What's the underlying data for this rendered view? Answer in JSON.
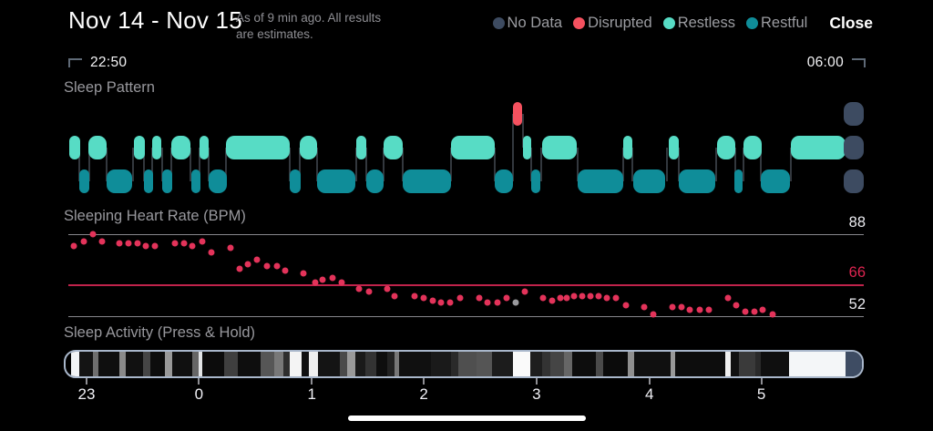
{
  "header": {
    "title": "Nov 14 - Nov 15",
    "subtitle": "As of 9 min ago. All results are estimates.",
    "close_label": "Close",
    "legend": [
      {
        "label": "No Data",
        "color": "#3d4b61"
      },
      {
        "label": "Disrupted",
        "color": "#f5515f"
      },
      {
        "label": "Restless",
        "color": "#57dcc5"
      },
      {
        "label": "Restful",
        "color": "#0f8d99"
      }
    ]
  },
  "time_range": {
    "start": "22:50",
    "end": "06:00"
  },
  "sections": {
    "pattern_title": "Sleep Pattern",
    "heart_rate_title": "Sleeping Heart Rate (BPM)",
    "activity_title": "Sleep Activity (Press & Hold)"
  },
  "chart_data": [
    {
      "type": "sleep-pattern-hypnogram",
      "title": "Sleep Pattern",
      "x_range": [
        "22:50",
        "06:00"
      ],
      "lanes": [
        "disrupted",
        "restless",
        "restful"
      ],
      "colors": {
        "disrupted": "#f5515f",
        "restless": "#57dcc5",
        "restful": "#0f8d99",
        "no_data": "#3d4b61",
        "connector": "#33383e"
      },
      "segments": [
        {
          "t": "restless",
          "s": 0.7,
          "e": 2.0
        },
        {
          "t": "restful",
          "s": 1.9,
          "e": 3.2
        },
        {
          "t": "restless",
          "s": 3.1,
          "e": 5.3
        },
        {
          "t": "restful",
          "s": 5.3,
          "e": 8.5
        },
        {
          "t": "restless",
          "s": 8.8,
          "e": 10.1
        },
        {
          "t": "restful",
          "s": 10.0,
          "e": 11.1
        },
        {
          "t": "restless",
          "s": 11.0,
          "e": 12.2
        },
        {
          "t": "restful",
          "s": 12.3,
          "e": 13.5
        },
        {
          "t": "restless",
          "s": 13.4,
          "e": 15.8
        },
        {
          "t": "restful",
          "s": 15.9,
          "e": 17.0
        },
        {
          "t": "restless",
          "s": 16.9,
          "e": 18.1
        },
        {
          "t": "restful",
          "s": 18.1,
          "e": 20.3
        },
        {
          "t": "restless",
          "s": 20.2,
          "e": 28.2
        },
        {
          "t": "restful",
          "s": 28.2,
          "e": 29.5
        },
        {
          "t": "restless",
          "s": 29.4,
          "e": 31.6
        },
        {
          "t": "restful",
          "s": 31.6,
          "e": 36.4
        },
        {
          "t": "restless",
          "s": 36.5,
          "e": 37.7
        },
        {
          "t": "restful",
          "s": 37.7,
          "e": 39.9
        },
        {
          "t": "restless",
          "s": 39.9,
          "e": 42.3
        },
        {
          "t": "restful",
          "s": 42.3,
          "e": 48.3
        },
        {
          "t": "restless",
          "s": 48.3,
          "e": 53.8
        },
        {
          "t": "restful",
          "s": 53.8,
          "e": 56.0
        },
        {
          "t": "disrupted",
          "s": 56.0,
          "e": 57.2
        },
        {
          "t": "restless",
          "s": 57.3,
          "e": 58.3
        },
        {
          "t": "restful",
          "s": 58.3,
          "e": 59.4
        },
        {
          "t": "restless",
          "s": 59.7,
          "e": 64.0
        },
        {
          "t": "restful",
          "s": 64.1,
          "e": 69.8
        },
        {
          "t": "restless",
          "s": 69.8,
          "e": 70.9
        },
        {
          "t": "restful",
          "s": 71.0,
          "e": 75.0
        },
        {
          "t": "restless",
          "s": 75.5,
          "e": 76.7
        },
        {
          "t": "restful",
          "s": 76.7,
          "e": 81.3
        },
        {
          "t": "restless",
          "s": 81.5,
          "e": 83.8
        },
        {
          "t": "restful",
          "s": 83.6,
          "e": 84.7
        },
        {
          "t": "restless",
          "s": 84.8,
          "e": 87.0
        },
        {
          "t": "restful",
          "s": 86.9,
          "e": 90.6
        },
        {
          "t": "restless",
          "s": 90.7,
          "e": 97.5
        }
      ],
      "no_data": {
        "s": 97.3,
        "e": 99.8
      }
    },
    {
      "type": "scatter",
      "title": "Sleeping Heart Rate (BPM)",
      "ylabels": [
        88,
        66,
        52
      ],
      "highlight_value": 66,
      "ylim": [
        50,
        91
      ],
      "dot_color": "#e3335a",
      "gray_dot_color": "#9a9a9e",
      "highlight_line_color": "#c0234b",
      "points": [
        [
          1.3,
          83
        ],
        [
          2.5,
          85
        ],
        [
          3.7,
          88
        ],
        [
          4.8,
          85
        ],
        [
          7,
          84
        ],
        [
          8.1,
          84
        ],
        [
          9.2,
          84
        ],
        [
          10.3,
          83
        ],
        [
          11.4,
          83
        ],
        [
          13.9,
          84
        ],
        [
          15,
          84
        ],
        [
          16.1,
          83
        ],
        [
          17.3,
          85
        ],
        [
          18.5,
          80
        ],
        [
          20.8,
          82
        ],
        [
          22,
          73
        ],
        [
          23,
          75
        ],
        [
          24.1,
          77
        ],
        [
          25.4,
          74
        ],
        [
          26.6,
          74
        ],
        [
          27.7,
          72
        ],
        [
          29.9,
          71
        ],
        [
          31.4,
          67
        ],
        [
          32.4,
          68
        ],
        [
          33.6,
          69
        ],
        [
          34.7,
          67
        ],
        [
          36.9,
          64
        ],
        [
          38.1,
          63
        ],
        [
          40.4,
          64
        ],
        [
          41.4,
          61
        ],
        [
          43.9,
          61
        ],
        [
          45,
          60
        ],
        [
          46.1,
          59
        ],
        [
          47.2,
          58
        ],
        [
          48.3,
          58
        ],
        [
          49.5,
          60
        ],
        [
          51.9,
          60
        ],
        [
          53,
          58
        ],
        [
          54.2,
          58
        ],
        [
          55.3,
          60
        ],
        [
          56.5,
          58,
          1
        ],
        [
          57.6,
          63
        ],
        [
          59.9,
          60
        ],
        [
          61,
          59
        ],
        [
          62.1,
          60
        ],
        [
          62.9,
          60
        ],
        [
          63.8,
          61
        ],
        [
          64.8,
          61
        ],
        [
          65.8,
          61
        ],
        [
          66.9,
          61
        ],
        [
          67.9,
          60
        ],
        [
          69,
          60
        ],
        [
          70.3,
          57
        ],
        [
          72.5,
          56
        ],
        [
          73.7,
          53
        ],
        [
          76.1,
          56
        ],
        [
          77.2,
          56
        ],
        [
          78.3,
          55
        ],
        [
          79.5,
          55
        ],
        [
          80.6,
          55
        ],
        [
          83,
          60
        ],
        [
          84.1,
          57
        ],
        [
          85.2,
          54
        ],
        [
          86.3,
          54
        ],
        [
          87.4,
          55
        ],
        [
          88.6,
          53
        ]
      ]
    },
    {
      "type": "activity-strip",
      "title": "Sleep Activity (Press & Hold)",
      "hour_ticks": [
        {
          "label": "23",
          "pct": 2.85
        },
        {
          "label": "0",
          "pct": 16.9
        },
        {
          "label": "1",
          "pct": 31.0
        },
        {
          "label": "2",
          "pct": 45.0
        },
        {
          "label": "3",
          "pct": 59.1
        },
        {
          "label": "4",
          "pct": 73.2
        },
        {
          "label": "5",
          "pct": 87.2
        }
      ],
      "segments": [
        [
          0.7,
          1.7,
          "#f2f4f6"
        ],
        [
          1.7,
          3.4,
          "#141414"
        ],
        [
          3.4,
          4.1,
          "#6e6e6e"
        ],
        [
          4.1,
          6.8,
          "#0f0f0f"
        ],
        [
          6.8,
          7.6,
          "#8a8a8a"
        ],
        [
          7.6,
          9.7,
          "#111111"
        ],
        [
          9.7,
          10.6,
          "#454545"
        ],
        [
          10.6,
          12.5,
          "#0d0d0d"
        ],
        [
          12.5,
          13.4,
          "#999999"
        ],
        [
          13.4,
          15.9,
          "#101010"
        ],
        [
          15.9,
          16.7,
          "#666666"
        ],
        [
          16.7,
          17.2,
          "#e2e4e6"
        ],
        [
          17.2,
          19.9,
          "#0c0c0c"
        ],
        [
          19.9,
          21.6,
          "#3f3f3f"
        ],
        [
          21.6,
          24.5,
          "#0e0e0e"
        ],
        [
          24.5,
          26.2,
          "#565656"
        ],
        [
          26.2,
          27.3,
          "#787878"
        ],
        [
          27.3,
          28.2,
          "#2e2e2e"
        ],
        [
          28.2,
          29.6,
          "#f4f4f4"
        ],
        [
          29.6,
          30.5,
          "#111111"
        ],
        [
          30.5,
          31.7,
          "#efefef"
        ],
        [
          31.7,
          34.4,
          "#141414"
        ],
        [
          34.4,
          35.3,
          "#4a4a4a"
        ],
        [
          35.3,
          36.4,
          "#9a9a9a"
        ],
        [
          36.4,
          37.6,
          "#1a1a1a"
        ],
        [
          37.6,
          39,
          "#333333"
        ],
        [
          39,
          40.4,
          "#0e0e0e"
        ],
        [
          40.4,
          41.3,
          "#222222"
        ],
        [
          41.3,
          41.9,
          "#777777"
        ],
        [
          41.9,
          45.9,
          "#101010"
        ],
        [
          45.9,
          48.4,
          "#1a1a1a"
        ],
        [
          48.4,
          49.3,
          "#2a2a2a"
        ],
        [
          49.3,
          51.6,
          "#4f4f4f"
        ],
        [
          51.6,
          53.5,
          "#555555"
        ],
        [
          53.5,
          56.2,
          "#1c1c1c"
        ],
        [
          56.2,
          58.4,
          "#fafafa"
        ],
        [
          58.4,
          59.8,
          "#1e1e1e"
        ],
        [
          59.8,
          60.9,
          "#333333"
        ],
        [
          60.9,
          62.6,
          "#454545"
        ],
        [
          62.6,
          63.6,
          "#666666"
        ],
        [
          63.6,
          66.6,
          "#0d0d0d"
        ],
        [
          66.6,
          67.5,
          "#4a4a4a"
        ],
        [
          67.5,
          70.6,
          "#0b0b0b"
        ],
        [
          70.6,
          71.4,
          "#8f8f8f"
        ],
        [
          71.4,
          76,
          "#101010"
        ],
        [
          76,
          76.6,
          "#999999"
        ],
        [
          76.6,
          82.8,
          "#0d0d0d"
        ],
        [
          82.8,
          83.5,
          "#f0f0f0"
        ],
        [
          83.5,
          84.5,
          "#111111"
        ],
        [
          84.5,
          86.6,
          "#3a3a3a"
        ],
        [
          86.6,
          87.3,
          "#2a2a2a"
        ],
        [
          87.3,
          90.9,
          "#0f0f0f"
        ],
        [
          90.9,
          97.9,
          "#f4f6f8"
        ],
        [
          97.9,
          100,
          "#3e4c63"
        ]
      ]
    }
  ]
}
